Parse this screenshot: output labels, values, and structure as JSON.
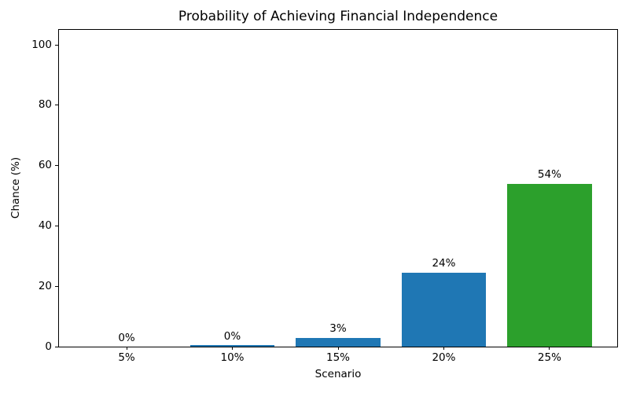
{
  "chart_data": {
    "type": "bar",
    "title": "Probability of Achieving Financial Independence",
    "xlabel": "Scenario",
    "ylabel": "Chance (%)",
    "categories": [
      "5%",
      "10%",
      "15%",
      "20%",
      "25%"
    ],
    "values": [
      0,
      0.4,
      3,
      24.5,
      54
    ],
    "bar_labels": [
      "0%",
      "0%",
      "3%",
      "24%",
      "54%"
    ],
    "bar_colors": [
      "#1f77b4",
      "#1f77b4",
      "#1f77b4",
      "#1f77b4",
      "#2ca02c"
    ],
    "ylim": [
      0,
      105
    ],
    "yticks": [
      0,
      20,
      40,
      60,
      80,
      100
    ],
    "grid": false,
    "legend_position": "none",
    "background_color": "#ffffff",
    "axis_color": "#000000"
  }
}
